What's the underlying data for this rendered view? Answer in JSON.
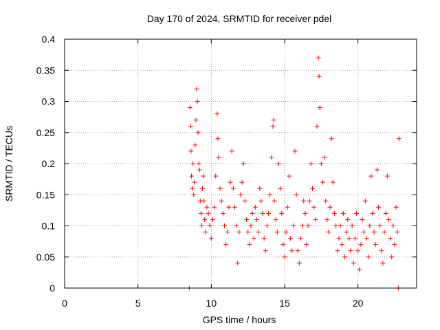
{
  "chart_data": {
    "type": "scatter",
    "title": "Day 170 of 2024, SRMTID for receiver pdel",
    "xlabel": "GPS time / hours",
    "ylabel": "SRMTID / TECUs",
    "xlim": [
      0,
      24
    ],
    "ylim": [
      0,
      0.4
    ],
    "xticks": [
      0,
      5,
      10,
      15,
      20
    ],
    "xtick_labels": [
      "0",
      "5",
      "10",
      "15",
      "20"
    ],
    "yticks": [
      0,
      0.05,
      0.1,
      0.15,
      0.2,
      0.25,
      0.3,
      0.35,
      0.4
    ],
    "ytick_labels": [
      "0",
      "0.05",
      "0.1",
      "0.15",
      "0.2",
      "0.25",
      "0.3",
      "0.35",
      "0.4"
    ],
    "grid": true,
    "marker": "+",
    "colors": {
      "points": "#ff0000",
      "axis": "#000000",
      "grid": "#a0a0a0"
    },
    "series": [
      {
        "name": "SRMTID",
        "points": [
          [
            8.5,
            0.0
          ],
          [
            8.55,
            0.29
          ],
          [
            8.6,
            0.26
          ],
          [
            8.62,
            0.22
          ],
          [
            8.65,
            0.18
          ],
          [
            8.7,
            0.16
          ],
          [
            8.75,
            0.2
          ],
          [
            8.8,
            0.15
          ],
          [
            8.85,
            0.17
          ],
          [
            8.9,
            0.23
          ],
          [
            8.95,
            0.27
          ],
          [
            9.0,
            0.32
          ],
          [
            9.05,
            0.3
          ],
          [
            9.1,
            0.25
          ],
          [
            9.15,
            0.2
          ],
          [
            9.2,
            0.19
          ],
          [
            9.25,
            0.14
          ],
          [
            9.3,
            0.12
          ],
          [
            9.35,
            0.1
          ],
          [
            9.4,
            0.16
          ],
          [
            9.45,
            0.18
          ],
          [
            9.5,
            0.14
          ],
          [
            9.55,
            0.11
          ],
          [
            9.6,
            0.09
          ],
          [
            9.7,
            0.13
          ],
          [
            9.8,
            0.12
          ],
          [
            9.9,
            0.1
          ],
          [
            10.0,
            0.08
          ],
          [
            10.1,
            0.11
          ],
          [
            10.2,
            0.13
          ],
          [
            10.3,
            0.18
          ],
          [
            10.4,
            0.28
          ],
          [
            10.45,
            0.24
          ],
          [
            10.5,
            0.21
          ],
          [
            10.6,
            0.16
          ],
          [
            10.7,
            0.14
          ],
          [
            10.8,
            0.12
          ],
          [
            10.9,
            0.1
          ],
          [
            11.0,
            0.07
          ],
          [
            11.1,
            0.09
          ],
          [
            11.2,
            0.13
          ],
          [
            11.3,
            0.17
          ],
          [
            11.4,
            0.22
          ],
          [
            11.5,
            0.16
          ],
          [
            11.6,
            0.13
          ],
          [
            11.7,
            0.1
          ],
          [
            11.8,
            0.04
          ],
          [
            11.9,
            0.09
          ],
          [
            12.0,
            0.15
          ],
          [
            12.1,
            0.17
          ],
          [
            12.2,
            0.2
          ],
          [
            12.3,
            0.14
          ],
          [
            12.4,
            0.11
          ],
          [
            12.5,
            0.09
          ],
          [
            12.6,
            0.07
          ],
          [
            12.7,
            0.1
          ],
          [
            12.8,
            0.12
          ],
          [
            12.9,
            0.08
          ],
          [
            13.0,
            0.13
          ],
          [
            13.1,
            0.11
          ],
          [
            13.2,
            0.09
          ],
          [
            13.3,
            0.16
          ],
          [
            13.4,
            0.14
          ],
          [
            13.5,
            0.12
          ],
          [
            13.6,
            0.08
          ],
          [
            13.7,
            0.06
          ],
          [
            13.8,
            0.1
          ],
          [
            13.9,
            0.12
          ],
          [
            14.0,
            0.15
          ],
          [
            14.1,
            0.21
          ],
          [
            14.2,
            0.26
          ],
          [
            14.25,
            0.27
          ],
          [
            14.3,
            0.14
          ],
          [
            14.4,
            0.11
          ],
          [
            14.5,
            0.09
          ],
          [
            14.6,
            0.2
          ],
          [
            14.7,
            0.16
          ],
          [
            14.8,
            0.12
          ],
          [
            14.9,
            0.07
          ],
          [
            15.0,
            0.05
          ],
          [
            15.1,
            0.09
          ],
          [
            15.2,
            0.13
          ],
          [
            15.3,
            0.18
          ],
          [
            15.4,
            0.08
          ],
          [
            15.5,
            0.06
          ],
          [
            15.6,
            0.1
          ],
          [
            15.7,
            0.22
          ],
          [
            15.8,
            0.15
          ],
          [
            15.9,
            0.06
          ],
          [
            16.0,
            0.04
          ],
          [
            16.1,
            0.08
          ],
          [
            16.2,
            0.1
          ],
          [
            16.3,
            0.14
          ],
          [
            16.4,
            0.12
          ],
          [
            16.5,
            0.07
          ],
          [
            16.6,
            0.1
          ],
          [
            16.7,
            0.14
          ],
          [
            16.8,
            0.2
          ],
          [
            16.9,
            0.16
          ],
          [
            17.0,
            0.13
          ],
          [
            17.1,
            0.11
          ],
          [
            17.2,
            0.26
          ],
          [
            17.3,
            0.37
          ],
          [
            17.35,
            0.34
          ],
          [
            17.4,
            0.29
          ],
          [
            17.5,
            0.2
          ],
          [
            17.6,
            0.17
          ],
          [
            17.7,
            0.21
          ],
          [
            17.8,
            0.14
          ],
          [
            17.9,
            0.11
          ],
          [
            18.0,
            0.09
          ],
          [
            18.1,
            0.13
          ],
          [
            18.2,
            0.24
          ],
          [
            18.3,
            0.17
          ],
          [
            18.4,
            0.12
          ],
          [
            18.5,
            0.1
          ],
          [
            18.6,
            0.06
          ],
          [
            18.7,
            0.08
          ],
          [
            18.8,
            0.1
          ],
          [
            18.9,
            0.07
          ],
          [
            19.0,
            0.12
          ],
          [
            19.1,
            0.05
          ],
          [
            19.2,
            0.09
          ],
          [
            19.3,
            0.11
          ],
          [
            19.4,
            0.08
          ],
          [
            19.5,
            0.06
          ],
          [
            19.6,
            0.1
          ],
          [
            19.7,
            0.04
          ],
          [
            19.8,
            0.08
          ],
          [
            19.9,
            0.12
          ],
          [
            20.0,
            0.06
          ],
          [
            20.1,
            0.03
          ],
          [
            20.2,
            0.07
          ],
          [
            20.3,
            0.11
          ],
          [
            20.4,
            0.09
          ],
          [
            20.5,
            0.14
          ],
          [
            20.6,
            0.08
          ],
          [
            20.7,
            0.05
          ],
          [
            20.8,
            0.1
          ],
          [
            20.9,
            0.18
          ],
          [
            21.0,
            0.12
          ],
          [
            21.1,
            0.09
          ],
          [
            21.2,
            0.07
          ],
          [
            21.3,
            0.19
          ],
          [
            21.4,
            0.13
          ],
          [
            21.5,
            0.1
          ],
          [
            21.6,
            0.06
          ],
          [
            21.7,
            0.04
          ],
          [
            21.8,
            0.09
          ],
          [
            21.9,
            0.12
          ],
          [
            22.0,
            0.18
          ],
          [
            22.1,
            0.11
          ],
          [
            22.2,
            0.08
          ],
          [
            22.3,
            0.05
          ],
          [
            22.4,
            0.1
          ],
          [
            22.5,
            0.07
          ],
          [
            22.6,
            0.13
          ],
          [
            22.7,
            0.09
          ],
          [
            22.75,
            0.0
          ],
          [
            22.8,
            0.24
          ]
        ]
      }
    ]
  }
}
